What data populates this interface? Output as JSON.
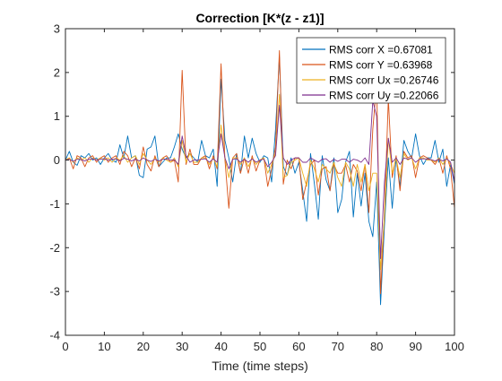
{
  "chart_data": {
    "type": "line",
    "title": "Correction [K*(z - z1)]",
    "xlabel": "Time (time steps)",
    "ylabel": "",
    "xlim": [
      0,
      100
    ],
    "ylim": [
      -4,
      3
    ],
    "x_ticks": [
      0,
      10,
      20,
      30,
      40,
      50,
      60,
      70,
      80,
      90,
      100
    ],
    "y_ticks": [
      -4,
      -3,
      -2,
      -1,
      0,
      1,
      2,
      3
    ],
    "grid": false,
    "legend_position": "top-right",
    "x": [
      0,
      1,
      2,
      3,
      4,
      5,
      6,
      7,
      8,
      9,
      10,
      11,
      12,
      13,
      14,
      15,
      16,
      17,
      18,
      19,
      20,
      21,
      22,
      23,
      24,
      25,
      26,
      27,
      28,
      29,
      30,
      31,
      32,
      33,
      34,
      35,
      36,
      37,
      38,
      39,
      40,
      41,
      42,
      43,
      44,
      45,
      46,
      47,
      48,
      49,
      50,
      51,
      52,
      53,
      54,
      55,
      56,
      57,
      58,
      59,
      60,
      61,
      62,
      63,
      64,
      65,
      66,
      67,
      68,
      69,
      70,
      71,
      72,
      73,
      74,
      75,
      76,
      77,
      78,
      79,
      80,
      81,
      82,
      83,
      84,
      85,
      86,
      87,
      88,
      89,
      90,
      91,
      92,
      93,
      94,
      95,
      96,
      97,
      98,
      99,
      100
    ],
    "series": [
      {
        "name": "RMS corr X =0.67081",
        "color": "#0072BD",
        "values": [
          0,
          0.2,
          -0.05,
          -0.12,
          0.1,
          0.05,
          0.15,
          0,
          0.05,
          -0.1,
          0.05,
          0.15,
          0,
          -0.05,
          0.35,
          0.05,
          0.55,
          0.05,
          0.1,
          -0.35,
          -0.4,
          0.25,
          0.3,
          0.55,
          -0.15,
          -0.05,
          0.05,
          0.05,
          0.3,
          0.6,
          0.25,
          0.05,
          0.15,
          0.05,
          -0.05,
          0.45,
          0.1,
          0.05,
          0.25,
          -0.6,
          1.85,
          0.45,
          0.05,
          -0.5,
          0.15,
          -0.3,
          0.55,
          0.05,
          0.5,
          0.15,
          -0.05,
          0.1,
          0.05,
          -0.5,
          0.7,
          2.35,
          -0.15,
          -0.35,
          0.05,
          -0.3,
          -0.05,
          -0.7,
          -1.4,
          0.15,
          -0.55,
          -1.35,
          0.1,
          -0.45,
          -0.7,
          0.05,
          -1.2,
          -0.9,
          -0.05,
          0.2,
          -1.3,
          -0.3,
          -1.05,
          -0.3,
          -1.4,
          -1.75,
          -0.5,
          -3.3,
          -1.5,
          0.05,
          -1.1,
          0.05,
          -0.6,
          0.45,
          0.2,
          0.05,
          0.6,
          0.1,
          -0.1,
          0.05,
          0.05,
          0.45,
          -0.05,
          0.25,
          -0.6,
          -0.1,
          -0.55
        ]
      },
      {
        "name": "RMS corr Y =0.63968",
        "color": "#D95319",
        "values": [
          0,
          0.05,
          -0.2,
          0.1,
          0.05,
          -0.15,
          0.05,
          0.1,
          -0.05,
          0.05,
          0.1,
          -0.05,
          0.05,
          0.1,
          -0.1,
          0.2,
          0.1,
          -0.15,
          0.05,
          -0.2,
          0.3,
          -0.1,
          -0.25,
          0.1,
          -0.15,
          0.05,
          0.1,
          -0.05,
          0,
          -0.5,
          2.05,
          -0.1,
          0.25,
          -0.1,
          -0.1,
          0.05,
          0.1,
          -0.2,
          0.1,
          -0.2,
          2.2,
          0,
          -1.1,
          0.05,
          0.15,
          -0.3,
          0.05,
          -0.3,
          0.1,
          -0.25,
          0,
          0.05,
          -0.6,
          -0.2,
          0.3,
          2.5,
          -0.55,
          0,
          -0.2,
          0.05,
          0.05,
          -0.9,
          -0.5,
          -0.1,
          0,
          -0.8,
          -0.2,
          -0.15,
          -0.7,
          -0.1,
          -0.3,
          -0.3,
          -0.1,
          -0.5,
          -0.1,
          -0.25,
          -0.7,
          -0.1,
          -1.2,
          0.7,
          1.75,
          -3.05,
          -1.2,
          1.4,
          -0.4,
          0.1,
          -0.7,
          0.2,
          0.05,
          0.1,
          -0.4,
          0.05,
          0.1,
          0.05,
          0,
          -0.1,
          0.05,
          -0.3,
          0.1,
          -0.2,
          -1.1
        ]
      },
      {
        "name": "RMS corr Ux =0.26746",
        "color": "#EDB120",
        "values": [
          0,
          0.05,
          -0.05,
          0.05,
          0,
          0.05,
          -0.05,
          0.05,
          0,
          0.05,
          0,
          0.05,
          -0.05,
          0.05,
          0,
          0.1,
          -0.05,
          0.05,
          0.1,
          -0.1,
          0.15,
          0,
          -0.1,
          0.05,
          -0.05,
          0.05,
          0,
          -0.05,
          0.05,
          -0.15,
          0.45,
          -0.05,
          0.15,
          -0.05,
          -0.05,
          0.05,
          0.05,
          -0.1,
          0.05,
          -0.15,
          0.8,
          0.05,
          -0.4,
          0.05,
          0.05,
          -0.1,
          0.05,
          -0.15,
          0.05,
          -0.1,
          0,
          0.05,
          -0.3,
          -0.1,
          0.15,
          1.5,
          -0.4,
          -0.35,
          -0.05,
          0,
          0.05,
          -0.3,
          -0.6,
          0,
          -0.2,
          -0.5,
          -0.1,
          -0.2,
          -0.3,
          -0.05,
          -0.4,
          -0.6,
          -0.05,
          -0.2,
          -0.6,
          -0.1,
          -0.5,
          -0.1,
          -0.7,
          -0.3,
          -0.3,
          -2.5,
          -1.3,
          0.5,
          -0.3,
          0.05,
          -0.4,
          0.15,
          0,
          0.05,
          -0.2,
          0.05,
          0.05,
          0,
          0,
          -0.05,
          0.05,
          -0.1,
          0.05,
          -0.1,
          -0.3
        ]
      },
      {
        "name": "RMS corr Uy =0.22066",
        "color": "#7E2F8E",
        "values": [
          0,
          0.02,
          -0.03,
          0.02,
          0.01,
          -0.02,
          0.02,
          0.03,
          0,
          0.02,
          0.03,
          0,
          0.02,
          0.03,
          -0.02,
          0.04,
          0.02,
          -0.02,
          0.02,
          -0.02,
          0.05,
          0,
          -0.03,
          0.02,
          -0.02,
          0.02,
          0.02,
          0,
          0.01,
          -0.1,
          0.55,
          0.1,
          -0.05,
          0,
          0,
          0.02,
          0.03,
          -0.05,
          0.03,
          -0.05,
          0.6,
          0.05,
          -0.2,
          0.02,
          0.03,
          -0.05,
          0.02,
          -0.05,
          0.03,
          -0.05,
          0,
          0.02,
          -0.15,
          -0.05,
          0.1,
          1.25,
          0.05,
          -0.1,
          0,
          0.05,
          0.05,
          -0.05,
          -0.05,
          0.05,
          0,
          -0.05,
          0.02,
          0.03,
          -0.05,
          0.02,
          -0.03,
          0.02,
          0.02,
          -0.05,
          0.02,
          0,
          -0.05,
          0.05,
          -0.1,
          1.35,
          1.0,
          -2.25,
          -0.5,
          0.5,
          -0.05,
          0.05,
          -0.1,
          0.05,
          0.02,
          0.05,
          -0.05,
          0.02,
          0.03,
          0.02,
          0.01,
          -0.02,
          0.02,
          -0.02,
          0.03,
          -0.05,
          -0.5
        ]
      }
    ]
  }
}
